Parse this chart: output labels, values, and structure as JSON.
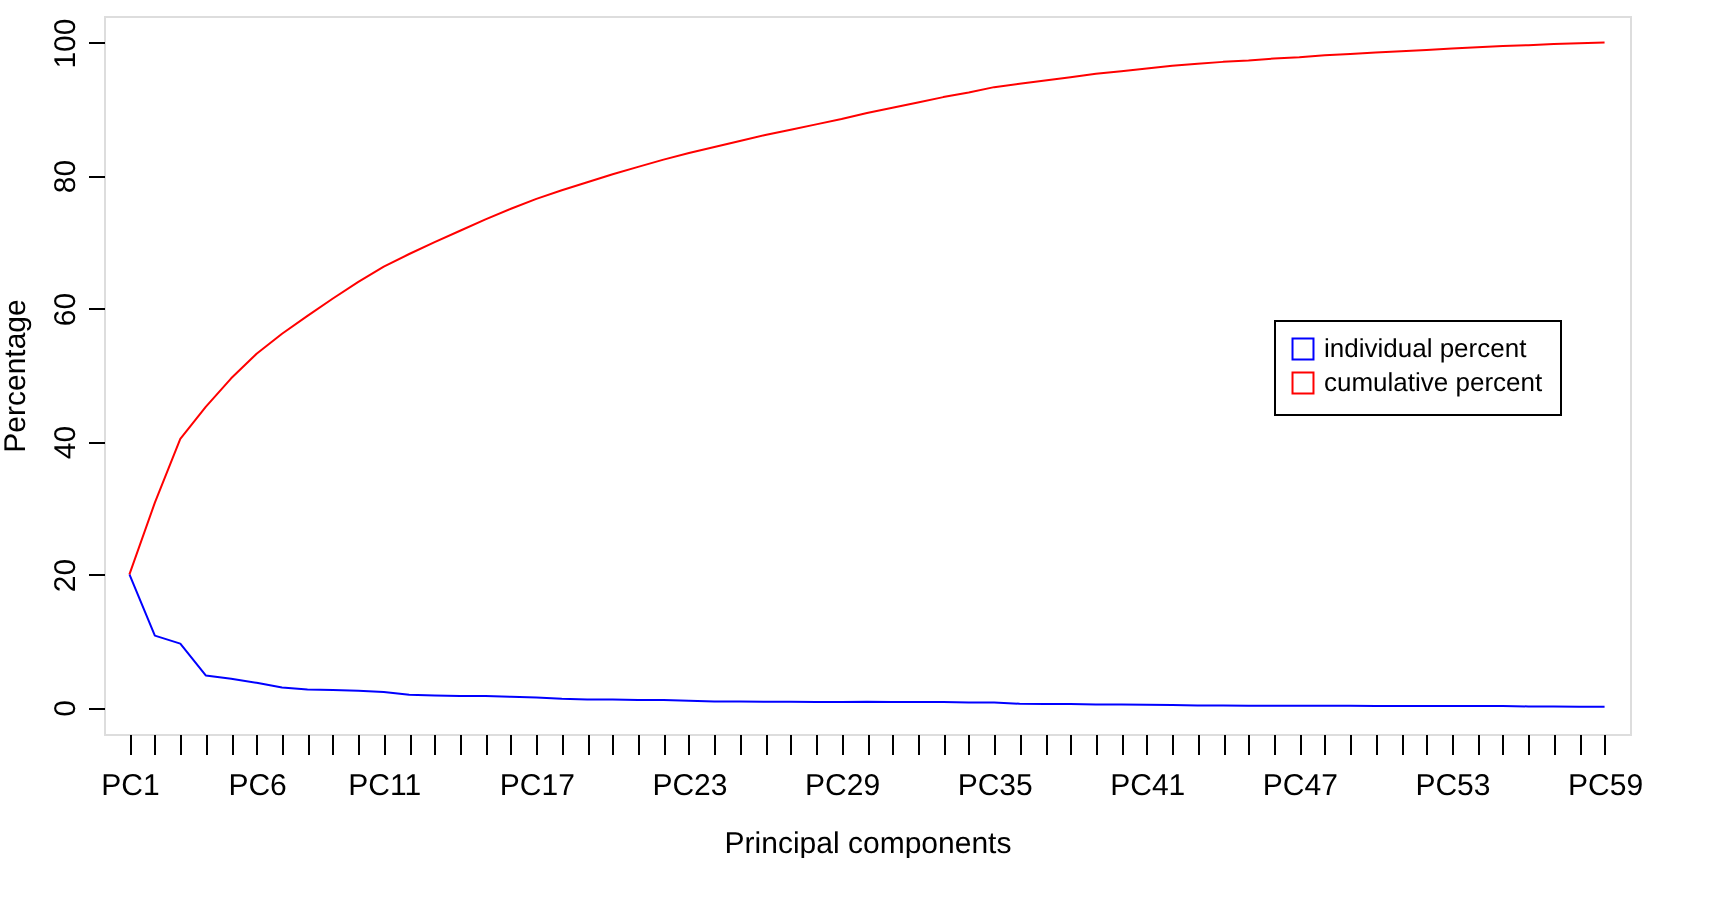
{
  "chart_data": {
    "type": "line",
    "xlabel": "Principal components",
    "ylabel": "Percentage",
    "categories": [
      "PC1",
      null,
      null,
      null,
      null,
      "PC6",
      null,
      null,
      null,
      null,
      "PC11",
      null,
      null,
      null,
      null,
      null,
      "PC17",
      null,
      null,
      null,
      null,
      null,
      "PC23",
      null,
      null,
      null,
      null,
      null,
      "PC29",
      null,
      null,
      null,
      null,
      null,
      "PC35",
      null,
      null,
      null,
      null,
      null,
      "PC41",
      null,
      null,
      null,
      null,
      null,
      "PC47",
      null,
      null,
      null,
      null,
      null,
      "PC53",
      null,
      null,
      null,
      null,
      null,
      "PC59"
    ],
    "series": [
      {
        "name": "individual percent",
        "color": "#0000ff",
        "values": [
          20.0,
          10.8,
          9.6,
          4.8,
          4.3,
          3.7,
          3.0,
          2.7,
          2.6,
          2.5,
          2.3,
          1.9,
          1.8,
          1.7,
          1.7,
          1.6,
          1.5,
          1.3,
          1.2,
          1.2,
          1.1,
          1.1,
          1.0,
          0.9,
          0.9,
          0.85,
          0.85,
          0.8,
          0.8,
          0.85,
          0.8,
          0.8,
          0.8,
          0.75,
          0.75,
          0.55,
          0.5,
          0.5,
          0.45,
          0.45,
          0.4,
          0.35,
          0.3,
          0.3,
          0.25,
          0.25,
          0.25,
          0.25,
          0.25,
          0.2,
          0.2,
          0.2,
          0.2,
          0.2,
          0.2,
          0.15,
          0.15,
          0.1,
          0.1
        ]
      },
      {
        "name": "cumulative percent",
        "color": "#ff0000",
        "values": [
          20.0,
          30.8,
          40.4,
          45.2,
          49.5,
          53.2,
          56.2,
          58.9,
          61.5,
          64.0,
          66.3,
          68.2,
          70.0,
          71.7,
          73.4,
          75.0,
          76.5,
          77.8,
          79.0,
          80.2,
          81.3,
          82.4,
          83.4,
          84.3,
          85.2,
          86.1,
          86.9,
          87.7,
          88.5,
          89.4,
          90.2,
          91.0,
          91.8,
          92.5,
          93.3,
          93.8,
          94.3,
          94.8,
          95.3,
          95.7,
          96.1,
          96.5,
          96.8,
          97.1,
          97.3,
          97.6,
          97.8,
          98.1,
          98.3,
          98.5,
          98.7,
          98.9,
          99.1,
          99.3,
          99.5,
          99.6,
          99.8,
          99.9,
          100.0
        ]
      }
    ],
    "ylim": [
      -4,
      104
    ],
    "yticks": [
      0,
      20,
      40,
      60,
      80,
      100
    ],
    "grid": false,
    "legend": "right",
    "marker": "none",
    "line_style": "solid"
  }
}
